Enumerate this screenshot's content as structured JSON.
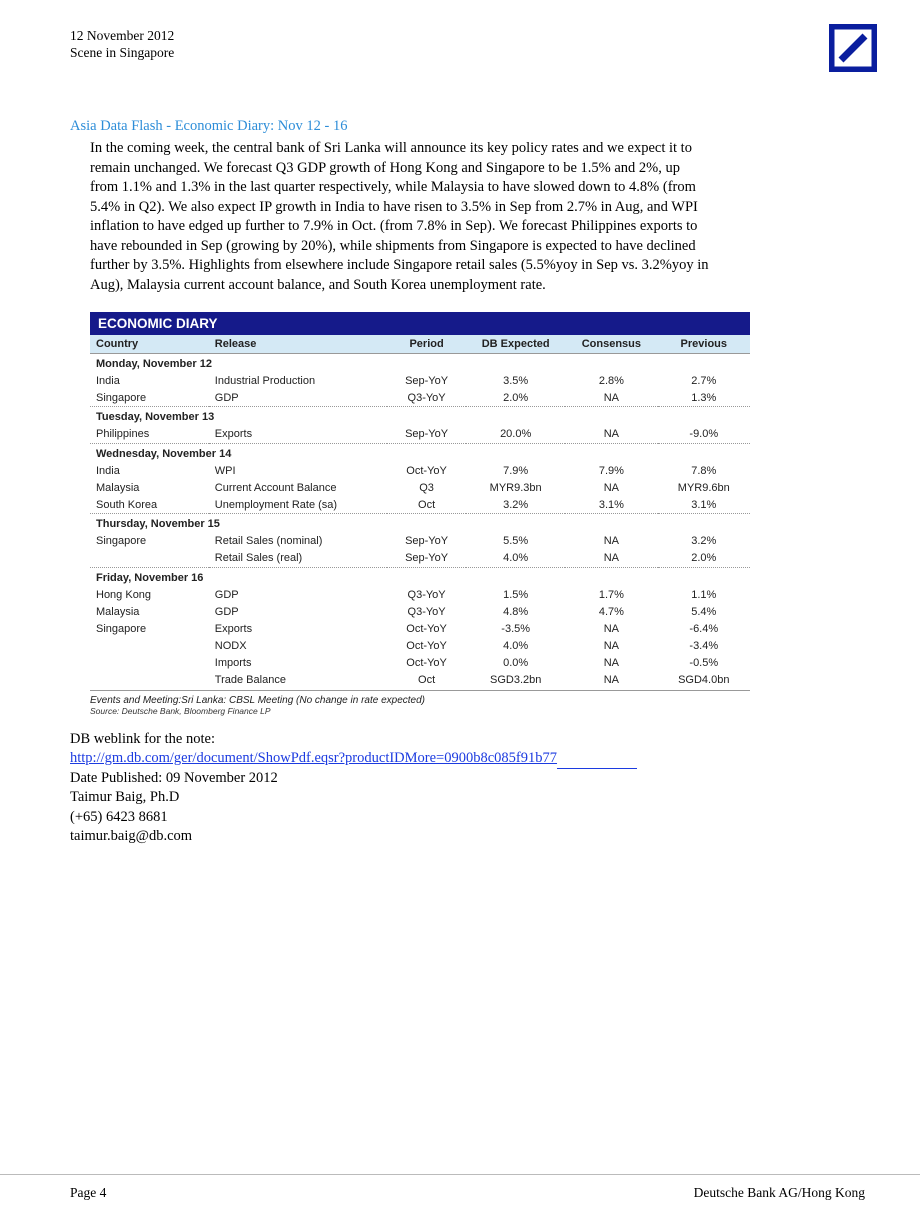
{
  "header": {
    "date": "12 November 2012",
    "subtitle": "Scene in Singapore"
  },
  "logo": {
    "border_color": "#0a1e9e",
    "slash_color": "#0a1e9e",
    "border_width": 4
  },
  "section": {
    "title": "Asia Data Flash - Economic Diary: Nov 12 - 16",
    "title_color": "#2d8dd8",
    "body": "In the coming week, the central bank of Sri Lanka will announce its key policy rates and we expect it to remain unchanged. We forecast Q3 GDP growth of Hong Kong and Singapore to be 1.5% and 2%, up from 1.1% and 1.3% in the last quarter respectively, while Malaysia to have slowed down to 4.8% (from 5.4% in Q2). We also expect IP growth in India to have risen to 3.5% in Sep from 2.7% in Aug, and WPI inflation to have edged up further to 7.9% in Oct. (from 7.8% in Sep). We forecast Philippines exports to have rebounded in Sep (growing by 20%), while shipments from Singapore is expected to have declined further by 3.5%. Highlights from elsewhere include Singapore retail sales (5.5%yoy in Sep vs. 3.2%yoy in Aug), Malaysia current account balance, and South Korea unemployment rate."
  },
  "diary": {
    "title": "ECONOMIC DIARY",
    "title_bg": "#151a8a",
    "title_color": "#ffffff",
    "header_bg": "#d4e9f5",
    "columns": [
      "Country",
      "Release",
      "Period",
      "DB Expected",
      "Consensus",
      "Previous"
    ],
    "footnote": "Events and Meeting:Sri Lanka: CBSL Meeting (No change in rate expected)",
    "source": "Source: Deutsche Bank, Bloomberg Finance LP",
    "sections": [
      {
        "day": "Monday, November 12",
        "rows": [
          [
            "India",
            "Industrial Production",
            "Sep-YoY",
            "3.5%",
            "2.8%",
            "2.7%"
          ],
          [
            "Singapore",
            "GDP",
            "Q3-YoY",
            "2.0%",
            "NA",
            "1.3%"
          ]
        ]
      },
      {
        "day": "Tuesday, November 13",
        "rows": [
          [
            "Philippines",
            "Exports",
            "Sep-YoY",
            "20.0%",
            "NA",
            "-9.0%"
          ]
        ]
      },
      {
        "day": "Wednesday, November 14",
        "rows": [
          [
            "India",
            "WPI",
            "Oct-YoY",
            "7.9%",
            "7.9%",
            "7.8%"
          ],
          [
            "Malaysia",
            "Current Account Balance",
            "Q3",
            "MYR9.3bn",
            "NA",
            "MYR9.6bn"
          ],
          [
            "South Korea",
            "Unemployment Rate (sa)",
            "Oct",
            "3.2%",
            "3.1%",
            "3.1%"
          ]
        ]
      },
      {
        "day": "Thursday, November 15",
        "rows": [
          [
            "Singapore",
            "Retail Sales (nominal)",
            "Sep-YoY",
            "5.5%",
            "NA",
            "3.2%"
          ],
          [
            "",
            "Retail Sales (real)",
            "Sep-YoY",
            "4.0%",
            "NA",
            "2.0%"
          ]
        ]
      },
      {
        "day": "Friday, November 16",
        "rows": [
          [
            "Hong Kong",
            "GDP",
            "Q3-YoY",
            "1.5%",
            "1.7%",
            "1.1%"
          ],
          [
            "Malaysia",
            "GDP",
            "Q3-YoY",
            "4.8%",
            "4.7%",
            "5.4%"
          ],
          [
            "Singapore",
            "Exports",
            "Oct-YoY",
            "-3.5%",
            "NA",
            "-6.4%"
          ],
          [
            "",
            "NODX",
            "Oct-YoY",
            "4.0%",
            "NA",
            "-3.4%"
          ],
          [
            "",
            "Imports",
            "Oct-YoY",
            "0.0%",
            "NA",
            "-0.5%"
          ],
          [
            "",
            "Trade Balance",
            "Oct",
            "SGD3.2bn",
            "NA",
            "SGD4.0bn"
          ]
        ]
      }
    ]
  },
  "weblink": {
    "intro": "DB weblink for the note:",
    "url": "http://gm.db.com/ger/document/ShowPdf.eqsr?productIDMore=0900b8c085f91b77",
    "published": "Date Published: 09 November 2012",
    "author": "Taimur Baig, Ph.D",
    "phone": "(+65) 6423 8681",
    "email": "taimur.baig@db.com"
  },
  "footer": {
    "page": "Page 4",
    "right": "Deutsche Bank AG/Hong Kong"
  }
}
